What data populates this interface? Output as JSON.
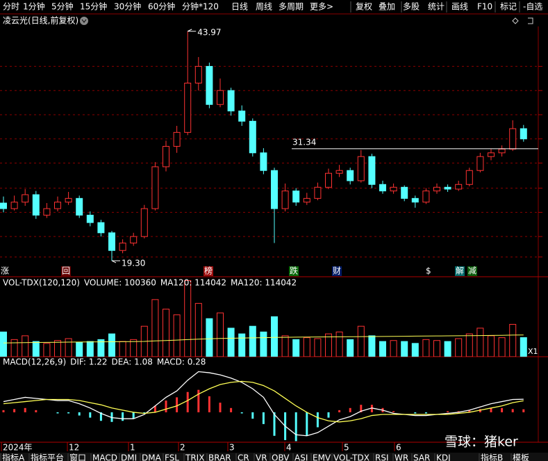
{
  "toolbar": {
    "items": [
      "分时",
      "1分钟",
      "5分钟",
      "15分钟",
      "30分钟",
      "60分钟",
      "分钟*120",
      "日线",
      "周线",
      "多周期",
      "更多>",
      "复权",
      "叠加",
      "多股",
      "统计",
      "画线",
      "F10",
      "标记",
      "-自选"
    ]
  },
  "stock": {
    "title": "凌云光(日线,前复权)"
  },
  "price_panel": {
    "candles": [
      [
        25.5,
        26.2,
        24.5,
        24.9
      ],
      [
        24.9,
        26.3,
        24.7,
        25.6
      ],
      [
        25.6,
        27.0,
        25.2,
        26.4
      ],
      [
        26.4,
        26.8,
        23.8,
        24.2
      ],
      [
        24.2,
        25.5,
        23.9,
        24.9
      ],
      [
        24.9,
        26.2,
        24.6,
        25.6
      ],
      [
        25.6,
        26.7,
        25.3,
        26.0
      ],
      [
        26.0,
        26.3,
        23.9,
        24.2
      ],
      [
        24.2,
        24.6,
        23.0,
        23.4
      ],
      [
        23.4,
        23.7,
        21.9,
        22.3
      ],
      [
        22.3,
        22.5,
        19.3,
        20.4
      ],
      [
        20.4,
        21.6,
        20.1,
        21.2
      ],
      [
        21.2,
        22.3,
        20.9,
        21.9
      ],
      [
        21.9,
        25.3,
        21.7,
        24.9
      ],
      [
        24.9,
        29.9,
        24.7,
        29.4
      ],
      [
        29.4,
        32.2,
        28.9,
        31.6
      ],
      [
        31.6,
        33.8,
        30.9,
        33.1
      ],
      [
        33.1,
        43.97,
        32.8,
        38.4
      ],
      [
        38.4,
        41.2,
        37.6,
        40.2
      ],
      [
        40.2,
        40.6,
        35.7,
        36.1
      ],
      [
        36.1,
        38.9,
        35.8,
        37.6
      ],
      [
        37.6,
        37.9,
        34.9,
        35.4
      ],
      [
        35.4,
        36.0,
        33.8,
        34.3
      ],
      [
        34.3,
        34.6,
        30.5,
        30.9
      ],
      [
        30.9,
        31.4,
        28.6,
        29.0
      ],
      [
        29.0,
        29.3,
        21.2,
        24.9
      ],
      [
        24.9,
        27.6,
        24.6,
        26.8
      ],
      [
        26.8,
        27.1,
        25.2,
        25.6
      ],
      [
        25.6,
        26.6,
        25.3,
        26.0
      ],
      [
        26.0,
        27.7,
        25.8,
        27.2
      ],
      [
        27.2,
        29.2,
        27.0,
        28.7
      ],
      [
        28.7,
        29.6,
        28.3,
        29.0
      ],
      [
        29.0,
        29.3,
        27.5,
        27.9
      ],
      [
        27.9,
        31.2,
        27.7,
        30.5
      ],
      [
        30.5,
        30.8,
        27.1,
        27.5
      ],
      [
        27.5,
        27.9,
        26.5,
        26.8
      ],
      [
        26.8,
        27.6,
        26.5,
        27.2
      ],
      [
        27.2,
        27.4,
        25.7,
        26.0
      ],
      [
        26.0,
        26.3,
        25.0,
        25.6
      ],
      [
        25.6,
        27.1,
        25.4,
        26.8
      ],
      [
        26.8,
        27.6,
        26.5,
        27.2
      ],
      [
        27.2,
        27.5,
        26.7,
        27.0
      ],
      [
        27.0,
        27.9,
        26.8,
        27.5
      ],
      [
        27.5,
        29.3,
        27.3,
        29.0
      ],
      [
        29.0,
        30.9,
        28.8,
        30.5
      ],
      [
        30.5,
        31.3,
        30.1,
        30.9
      ],
      [
        30.9,
        31.7,
        30.5,
        31.3
      ],
      [
        31.3,
        34.4,
        31.1,
        33.5
      ],
      [
        33.5,
        33.9,
        32.1,
        32.4
      ]
    ],
    "ylim": [
      17.8,
      45.84
    ],
    "grid_levels": [
      19.7,
      21.9,
      24.5,
      27.1,
      29.8,
      32.4,
      35.0,
      37.6,
      40.2
    ],
    "high_label": "43.97",
    "low_label": "19.30",
    "level": {
      "value": 31.34,
      "label": "31.34"
    },
    "markers": [
      "涨",
      "回",
      "榜",
      "跌",
      "财",
      "$",
      "解",
      "减"
    ]
  },
  "volume_panel": {
    "title": "VOL-TDX(120,120)",
    "volume_text": "VOLUME: 100360",
    "ma_text": "MA120: 114042",
    "ma_text_2": "MA120: 114042",
    "volume": [
      130000,
      90000,
      110000,
      80000,
      70000,
      85000,
      95000,
      75000,
      80000,
      90000,
      120000,
      80000,
      90000,
      160000,
      300000,
      250000,
      220000,
      400000,
      280000,
      200000,
      230000,
      150000,
      120000,
      160000,
      130000,
      210000,
      110000,
      90000,
      100000,
      95000,
      120000,
      130000,
      90000,
      160000,
      110000,
      80000,
      85000,
      80000,
      70000,
      90000,
      85000,
      80000,
      95000,
      120000,
      150000,
      110000,
      100000,
      170000,
      100360
    ],
    "ma120": [
      72000,
      73000,
      74000,
      75000,
      75500,
      76000,
      76500,
      77000,
      77500,
      78000,
      78500,
      79000,
      79500,
      80500,
      83000,
      85000,
      87000,
      90000,
      92000,
      94000,
      96000,
      97000,
      98000,
      99000,
      100000,
      101500,
      102000,
      102500,
      103000,
      103500,
      104000,
      104500,
      105000,
      105500,
      106000,
      106500,
      107000,
      107500,
      108000,
      108500,
      109000,
      109500,
      110000,
      110500,
      111000,
      112000,
      112500,
      113500,
      114042
    ],
    "ylim": [
      0,
      420000
    ]
  },
  "macd_panel": {
    "title": "MACD(12,26,9)",
    "dif_text": "DIF: 1.22",
    "dea_text": "DEA: 1.08",
    "macd_text": "MACD: 0.28",
    "dif": [
      1.0,
      1.2,
      1.4,
      1.3,
      1.2,
      1.1,
      1.1,
      0.8,
      0.4,
      -0.1,
      -0.5,
      -0.6,
      -0.6,
      -0.2,
      0.6,
      1.4,
      2.0,
      3.0,
      3.8,
      3.7,
      3.5,
      3.2,
      2.8,
      2.2,
      1.4,
      -0.2,
      -1.3,
      -2.1,
      -2.2,
      -1.9,
      -1.3,
      -0.7,
      -0.4,
      0.1,
      0.4,
      0.2,
      -0.1,
      -0.2,
      -0.3,
      -0.3,
      -0.2,
      -0.1,
      0.0,
      0.2,
      0.5,
      0.8,
      1.0,
      1.2,
      1.22
    ],
    "dea": [
      0.8,
      0.9,
      1.0,
      1.1,
      1.2,
      1.2,
      1.2,
      1.1,
      0.9,
      0.7,
      0.4,
      0.2,
      0.0,
      -0.1,
      0.0,
      0.3,
      0.6,
      1.1,
      1.7,
      2.2,
      2.6,
      2.8,
      2.9,
      2.8,
      2.5,
      2.0,
      1.3,
      0.6,
      0.0,
      -0.5,
      -0.8,
      -0.9,
      -0.8,
      -0.6,
      -0.3,
      -0.2,
      -0.2,
      -0.2,
      -0.2,
      -0.2,
      -0.2,
      -0.2,
      -0.1,
      0.0,
      0.2,
      0.4,
      0.6,
      0.9,
      1.08
    ],
    "macd": [
      0.2,
      0.3,
      0.4,
      0.2,
      0.0,
      -0.1,
      -0.1,
      -0.3,
      -0.5,
      -0.8,
      -0.9,
      -0.8,
      -0.6,
      -0.1,
      0.6,
      1.1,
      1.4,
      1.9,
      2.1,
      1.5,
      0.9,
      0.4,
      -0.1,
      -0.6,
      -1.1,
      -2.2,
      -2.6,
      -2.7,
      -2.2,
      -1.4,
      -0.5,
      0.2,
      0.4,
      0.7,
      0.7,
      0.4,
      0.1,
      0.0,
      -0.1,
      -0.1,
      0.0,
      0.1,
      0.1,
      0.2,
      0.3,
      0.4,
      0.4,
      0.3,
      0.28
    ],
    "ylim": [
      -2.8,
      5.2
    ]
  },
  "date_axis": [
    "2024年",
    "12",
    "1",
    "2",
    "3",
    "4",
    "5",
    "6"
  ],
  "tabs": [
    "指标A",
    "指标平台",
    "窗口",
    "MACD",
    "DMI",
    "DMA",
    "FSL",
    "TRIX",
    "BRAR",
    "CR",
    "VR",
    "OBV",
    "ASI",
    "EMV",
    "VOL-TDX",
    "RSI",
    "WR",
    "SAR",
    "KDJ",
    "指标B",
    "模板"
  ],
  "watermark": "雪球：猪ker"
}
